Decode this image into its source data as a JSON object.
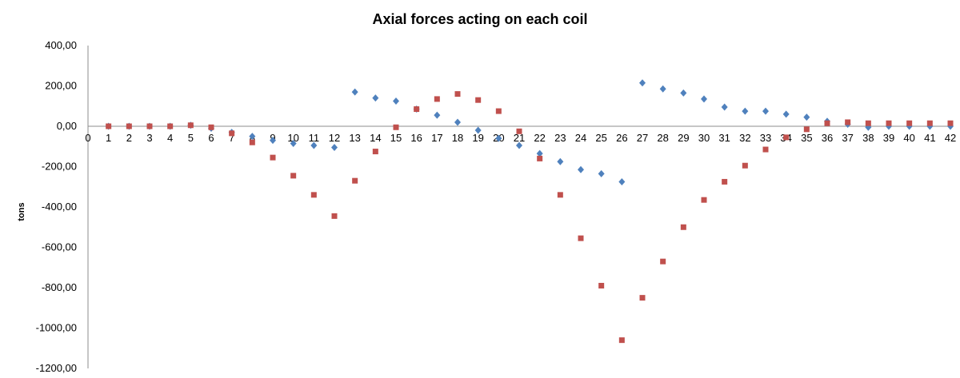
{
  "chart_data": {
    "type": "scatter",
    "title": "Axial forces acting on each coil",
    "xlabel": "",
    "ylabel": "tons",
    "x": [
      0,
      1,
      2,
      3,
      4,
      5,
      6,
      7,
      8,
      9,
      10,
      11,
      12,
      13,
      14,
      15,
      16,
      17,
      18,
      19,
      20,
      21,
      22,
      23,
      24,
      25,
      26,
      27,
      28,
      29,
      30,
      31,
      32,
      33,
      34,
      35,
      36,
      37,
      38,
      39,
      40,
      41,
      42
    ],
    "x_tick_labels": [
      "0",
      "1",
      "2",
      "3",
      "4",
      "5",
      "6",
      "7",
      "8",
      "9",
      "10",
      "11",
      "12",
      "13",
      "14",
      "15",
      "16",
      "17",
      "18",
      "19",
      "20",
      "21",
      "22",
      "23",
      "24",
      "25",
      "26",
      "27",
      "28",
      "29",
      "30",
      "31",
      "32",
      "33",
      "34",
      "35",
      "36",
      "37",
      "38",
      "39",
      "40",
      "41",
      "42"
    ],
    "xlim": [
      0,
      42
    ],
    "ylim": [
      -1200,
      400
    ],
    "y_ticks": [
      400,
      200,
      0,
      -200,
      -400,
      -600,
      -800,
      -1000,
      -1200
    ],
    "y_tick_labels": [
      "400,00",
      "200,00",
      "0,00",
      "-200,00",
      "-400,00",
      "-600,00",
      "-800,00",
      "-1000,00",
      "-1200,00"
    ],
    "grid": false,
    "legend": "none",
    "series": [
      {
        "color": "#4f81bd",
        "marker": "diamond",
        "points": [
          [
            1,
            0
          ],
          [
            2,
            0
          ],
          [
            3,
            0
          ],
          [
            4,
            0
          ],
          [
            5,
            5
          ],
          [
            6,
            -10
          ],
          [
            7,
            -30
          ],
          [
            8,
            -50
          ],
          [
            9,
            -70
          ],
          [
            10,
            -85
          ],
          [
            11,
            -95
          ],
          [
            12,
            -105
          ],
          [
            13,
            170
          ],
          [
            14,
            140
          ],
          [
            15,
            125
          ],
          [
            16,
            85
          ],
          [
            17,
            55
          ],
          [
            18,
            20
          ],
          [
            19,
            -20
          ],
          [
            20,
            -60
          ],
          [
            21,
            -95
          ],
          [
            22,
            -135
          ],
          [
            23,
            -175
          ],
          [
            24,
            -215
          ],
          [
            25,
            -235
          ],
          [
            26,
            -275
          ],
          [
            27,
            215
          ],
          [
            28,
            185
          ],
          [
            29,
            165
          ],
          [
            30,
            135
          ],
          [
            31,
            95
          ],
          [
            32,
            75
          ],
          [
            33,
            75
          ],
          [
            34,
            60
          ],
          [
            35,
            45
          ],
          [
            36,
            25
          ],
          [
            37,
            10
          ],
          [
            38,
            -5
          ],
          [
            39,
            0
          ],
          [
            40,
            0
          ],
          [
            41,
            0
          ],
          [
            42,
            0
          ]
        ]
      },
      {
        "color": "#c0504d",
        "marker": "square",
        "points": [
          [
            1,
            0
          ],
          [
            2,
            0
          ],
          [
            3,
            0
          ],
          [
            4,
            0
          ],
          [
            5,
            5
          ],
          [
            6,
            -5
          ],
          [
            7,
            -35
          ],
          [
            8,
            -80
          ],
          [
            9,
            -155
          ],
          [
            10,
            -245
          ],
          [
            11,
            -340
          ],
          [
            12,
            -445
          ],
          [
            13,
            -270
          ],
          [
            14,
            -125
          ],
          [
            15,
            -5
          ],
          [
            16,
            85
          ],
          [
            17,
            135
          ],
          [
            18,
            160
          ],
          [
            19,
            130
          ],
          [
            20,
            75
          ],
          [
            21,
            -25
          ],
          [
            22,
            -160
          ],
          [
            23,
            -340
          ],
          [
            24,
            -555
          ],
          [
            25,
            -790
          ],
          [
            26,
            -1060
          ],
          [
            27,
            -850
          ],
          [
            28,
            -670
          ],
          [
            29,
            -500
          ],
          [
            30,
            -365
          ],
          [
            31,
            -275
          ],
          [
            32,
            -195
          ],
          [
            33,
            -115
          ],
          [
            34,
            -55
          ],
          [
            35,
            -15
          ],
          [
            36,
            15
          ],
          [
            37,
            20
          ],
          [
            38,
            15
          ],
          [
            39,
            15
          ],
          [
            40,
            15
          ],
          [
            41,
            15
          ],
          [
            42,
            15
          ]
        ]
      }
    ]
  }
}
